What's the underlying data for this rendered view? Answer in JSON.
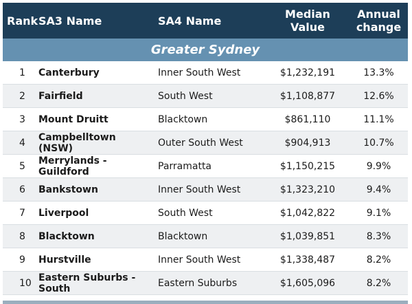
{
  "headers": {
    "rank": "Rank",
    "sa3": "SA3 Name",
    "sa4": "SA4 Name",
    "median_line1": "Median",
    "median_line2": "Value",
    "annual_line1": "Annual",
    "annual_line2": "change"
  },
  "region": "Greater Sydney",
  "rows": [
    {
      "rank": "1",
      "sa3": "Canterbury",
      "sa4": "Inner South West",
      "median": "$1,232,191",
      "annual": "13.3%"
    },
    {
      "rank": "2",
      "sa3": "Fairfield",
      "sa4": "South West",
      "median": "$1,108,877",
      "annual": "12.6%"
    },
    {
      "rank": "3",
      "sa3": "Mount Druitt",
      "sa4": "Blacktown",
      "median": "$861,110",
      "annual": "11.1%"
    },
    {
      "rank": "4",
      "sa3": "Campbelltown (NSW)",
      "sa4": "Outer South West",
      "median": "$904,913",
      "annual": "10.7%"
    },
    {
      "rank": "5",
      "sa3": "Merrylands - Guildford",
      "sa4": "Parramatta",
      "median": "$1,150,215",
      "annual": "9.9%"
    },
    {
      "rank": "6",
      "sa3": "Bankstown",
      "sa4": "Inner South West",
      "median": "$1,323,210",
      "annual": "9.4%"
    },
    {
      "rank": "7",
      "sa3": "Liverpool",
      "sa4": "South West",
      "median": "$1,042,822",
      "annual": "9.1%"
    },
    {
      "rank": "8",
      "sa3": "Blacktown",
      "sa4": "Blacktown",
      "median": "$1,039,851",
      "annual": "8.3%"
    },
    {
      "rank": "9",
      "sa3": "Hurstville",
      "sa4": "Inner South West",
      "median": "$1,338,487",
      "annual": "8.2%"
    },
    {
      "rank": "10",
      "sa3": "Eastern Suburbs - South",
      "sa4": "Eastern Suburbs",
      "median": "$1,605,096",
      "annual": "8.2%"
    }
  ]
}
